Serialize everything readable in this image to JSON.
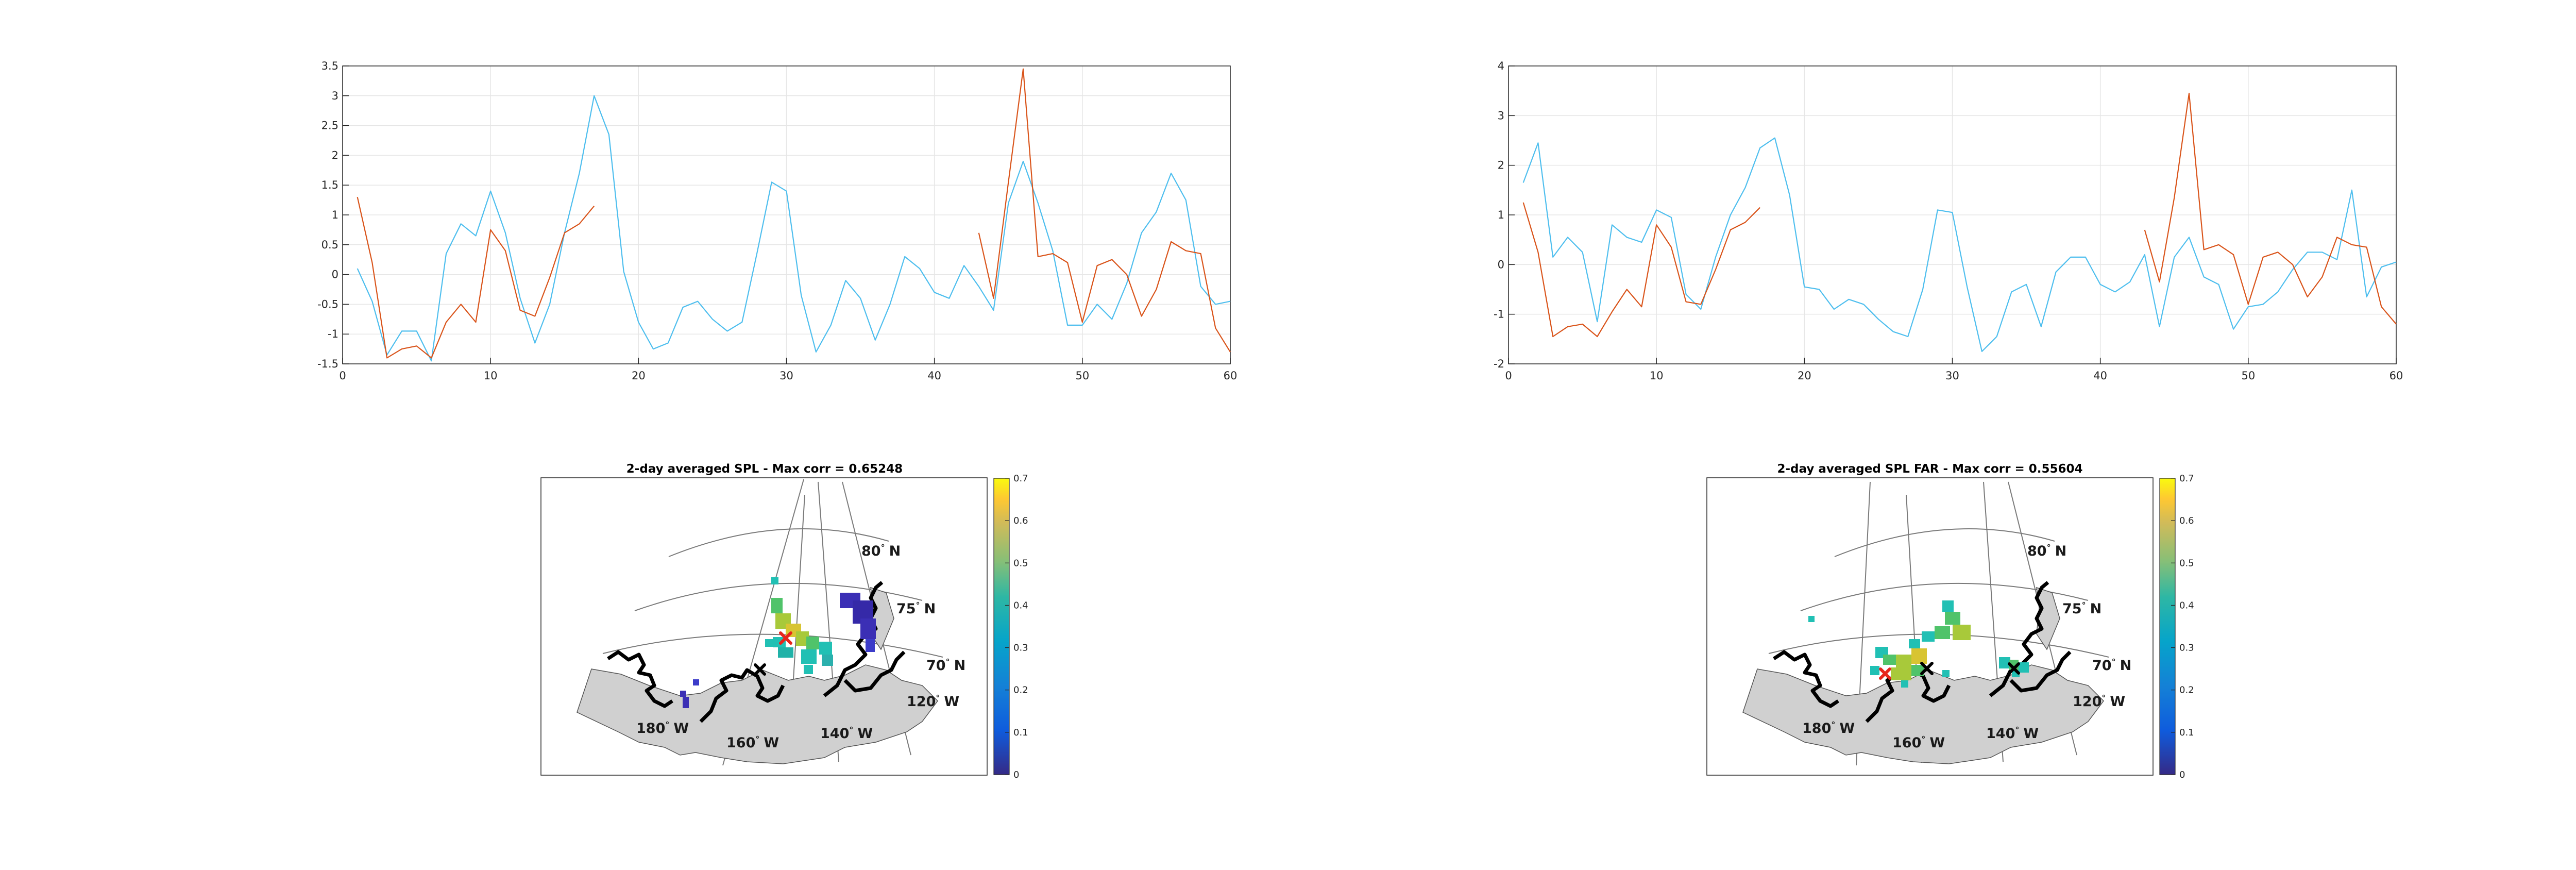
{
  "chart_data": [
    {
      "type": "line",
      "xlim": [
        0,
        60
      ],
      "ylim": [
        -1.5,
        3.5
      ],
      "xticks": [
        "0",
        "10",
        "20",
        "30",
        "40",
        "50",
        "60"
      ],
      "yticks": [
        "3.5",
        "3",
        "2.5",
        "2",
        "1.5",
        "1",
        "0.5",
        "0",
        "-0.5",
        "-1",
        "-1.5"
      ],
      "grid": true,
      "series": [
        {
          "color": "#4DBEEE",
          "x": [
            1,
            2,
            3,
            4,
            5,
            6,
            7,
            8,
            9,
            10,
            11,
            12,
            13,
            14,
            15,
            16,
            17,
            18,
            19,
            20,
            21,
            22,
            23,
            24,
            25,
            26,
            27,
            28,
            29,
            30,
            31,
            32,
            33,
            34,
            35,
            36,
            37,
            38,
            39,
            40,
            41,
            42,
            43,
            44,
            45,
            46,
            47,
            48,
            49,
            50,
            51,
            52,
            53,
            54,
            55,
            56,
            57,
            58,
            59,
            60
          ],
          "y": [
            0.1,
            -0.45,
            -1.35,
            -0.95,
            -0.95,
            -1.45,
            0.35,
            0.85,
            0.65,
            1.4,
            0.7,
            -0.4,
            -1.15,
            -0.5,
            0.7,
            1.7,
            3.0,
            2.35,
            0.05,
            -0.8,
            -1.25,
            -1.15,
            -0.55,
            -0.45,
            -0.75,
            -0.95,
            -0.8,
            0.35,
            1.55,
            1.4,
            -0.35,
            -1.3,
            -0.85,
            -0.1,
            -0.4,
            -1.1,
            -0.5,
            0.3,
            0.1,
            -0.3,
            -0.4,
            0.15,
            -0.2,
            -0.6,
            1.2,
            1.9,
            1.2,
            0.4,
            -0.85,
            -0.85,
            -0.5,
            -0.75,
            -0.15,
            0.7,
            1.05,
            1.7,
            1.25,
            -0.2,
            -0.5,
            -0.45
          ]
        },
        {
          "color": "#D95319",
          "x": [
            1,
            2,
            3,
            4,
            5,
            6,
            7,
            8,
            9,
            10,
            11,
            12,
            13,
            14,
            15,
            16,
            17,
            null,
            43,
            44,
            45,
            46,
            47,
            48,
            49,
            50,
            51,
            52,
            53,
            54,
            55,
            56,
            57,
            58,
            59,
            60
          ],
          "y": [
            1.3,
            0.2,
            -1.4,
            -1.25,
            -1.2,
            -1.4,
            -0.8,
            -0.5,
            -0.8,
            0.75,
            0.4,
            -0.6,
            -0.7,
            -0.05,
            0.7,
            0.85,
            1.15,
            null,
            0.7,
            -0.4,
            1.55,
            3.45,
            0.3,
            0.35,
            0.2,
            -0.8,
            0.15,
            0.25,
            0.0,
            -0.7,
            -0.25,
            0.55,
            0.4,
            0.35,
            -0.9,
            -1.3
          ]
        }
      ]
    },
    {
      "type": "line",
      "xlim": [
        0,
        60
      ],
      "ylim": [
        -2,
        4
      ],
      "xticks": [
        "0",
        "10",
        "20",
        "30",
        "40",
        "50",
        "60"
      ],
      "yticks": [
        "4",
        "3",
        "2",
        "1",
        "0",
        "-1",
        "-2"
      ],
      "grid": true,
      "series": [
        {
          "color": "#4DBEEE",
          "x": [
            1,
            2,
            3,
            4,
            5,
            6,
            7,
            8,
            9,
            10,
            11,
            12,
            13,
            14,
            15,
            16,
            17,
            18,
            19,
            20,
            21,
            22,
            23,
            24,
            25,
            26,
            27,
            28,
            29,
            30,
            31,
            32,
            33,
            34,
            35,
            36,
            37,
            38,
            39,
            40,
            41,
            42,
            43,
            44,
            45,
            46,
            47,
            48,
            49,
            50,
            51,
            52,
            53,
            54,
            55,
            56,
            57,
            58,
            59,
            60
          ],
          "y": [
            1.65,
            2.45,
            0.15,
            0.55,
            0.25,
            -1.15,
            0.8,
            0.55,
            0.45,
            1.1,
            0.95,
            -0.6,
            -0.9,
            0.15,
            1.0,
            1.55,
            2.35,
            2.55,
            1.4,
            -0.45,
            -0.5,
            -0.9,
            -0.7,
            -0.8,
            -1.1,
            -1.35,
            -1.45,
            -0.5,
            1.1,
            1.05,
            -0.45,
            -1.75,
            -1.45,
            -0.55,
            -0.4,
            -1.25,
            -0.15,
            0.15,
            0.15,
            -0.4,
            -0.55,
            -0.35,
            0.2,
            -1.25,
            0.15,
            0.55,
            -0.25,
            -0.4,
            -1.3,
            -0.85,
            -0.8,
            -0.55,
            -0.1,
            0.25,
            0.25,
            0.1,
            1.5,
            -0.65,
            -0.05,
            0.05
          ]
        },
        {
          "color": "#D95319",
          "x": [
            1,
            2,
            3,
            4,
            5,
            6,
            7,
            8,
            9,
            10,
            11,
            12,
            13,
            14,
            15,
            16,
            17,
            null,
            43,
            44,
            45,
            46,
            47,
            48,
            49,
            50,
            51,
            52,
            53,
            54,
            55,
            56,
            57,
            58,
            59,
            60
          ],
          "y": [
            1.25,
            0.25,
            -1.45,
            -1.25,
            -1.2,
            -1.45,
            -0.95,
            -0.5,
            -0.85,
            0.8,
            0.35,
            -0.75,
            -0.8,
            -0.1,
            0.7,
            0.85,
            1.15,
            null,
            0.7,
            -0.35,
            1.35,
            3.45,
            0.3,
            0.4,
            0.2,
            -0.8,
            0.15,
            0.25,
            0.0,
            -0.65,
            -0.25,
            0.55,
            0.4,
            0.35,
            -0.85,
            -1.2
          ]
        }
      ]
    },
    {
      "type": "heatmap",
      "title": "2-day averaged SPL - Max corr = 0.65248",
      "colorbar": {
        "ticks": [
          "0.7",
          "0.6",
          "0.5",
          "0.4",
          "0.3",
          "0.2",
          "0.1",
          "0"
        ],
        "range": [
          0,
          0.7
        ]
      },
      "map_labels": {
        "lat80": "80",
        "lat75": "75",
        "lat70": "70",
        "lon180": "180",
        "lon160": "160",
        "lon140": "140",
        "lon120": "120",
        "north": "N",
        "west": "W"
      }
    },
    {
      "type": "heatmap",
      "title": "2-day averaged SPL FAR - Max corr = 0.55604",
      "colorbar": {
        "ticks": [
          "0.7",
          "0.6",
          "0.5",
          "0.4",
          "0.3",
          "0.2",
          "0.1",
          "0"
        ],
        "range": [
          0,
          0.7
        ]
      },
      "map_labels": {
        "lat80": "80",
        "lat75": "75",
        "lat70": "70",
        "lon180": "180",
        "lon160": "160",
        "lon140": "140",
        "lon120": "120",
        "north": "N",
        "west": "W"
      }
    }
  ],
  "colors": {
    "grid": "#e6e6e6",
    "axis": "#262626",
    "land": "#d0d0d0",
    "coast": "#000000",
    "marker_red": "#e8241b",
    "marker_black": "#000000"
  }
}
